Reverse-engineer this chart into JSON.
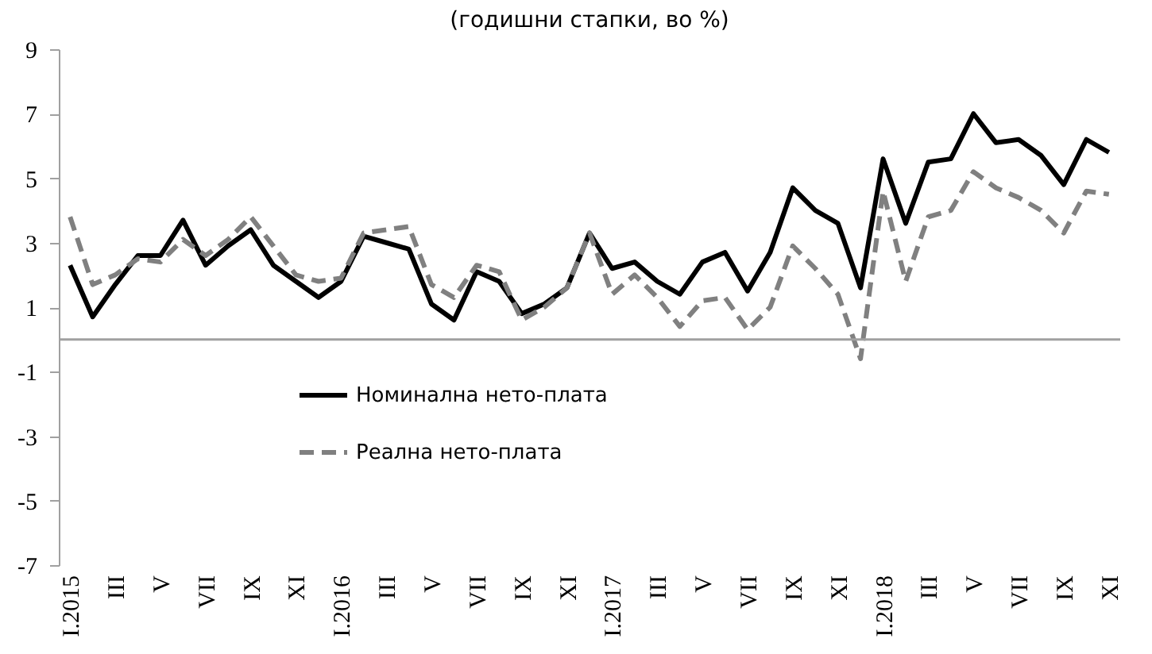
{
  "chart_data": {
    "type": "line",
    "title": "(годишни стапки, во %)",
    "categories": [
      "I.2015",
      null,
      "III",
      null,
      "V",
      null,
      "VII",
      null,
      "IX",
      null,
      "XI",
      null,
      "I.2016",
      null,
      "III",
      null,
      "V",
      null,
      "VII",
      null,
      "IX",
      null,
      "XI",
      null,
      "I.2017",
      null,
      "III",
      null,
      "V",
      null,
      "VII",
      null,
      "IX",
      null,
      "XI",
      null,
      "I.2018",
      null,
      "III",
      null,
      "V",
      null,
      "VII",
      null,
      "IX",
      null,
      "XI"
    ],
    "series": [
      {
        "name": "Номинална нето-плата",
        "color": "#000000",
        "line_style": "solid",
        "values": [
          2.3,
          0.7,
          1.7,
          2.6,
          2.6,
          3.7,
          2.3,
          2.9,
          3.4,
          2.3,
          1.8,
          1.3,
          1.8,
          3.2,
          3.0,
          2.8,
          1.1,
          0.6,
          2.1,
          1.8,
          0.8,
          1.1,
          1.6,
          3.3,
          2.2,
          2.4,
          1.8,
          1.4,
          2.4,
          2.7,
          1.5,
          2.7,
          4.7,
          4.0,
          3.6,
          1.6,
          5.6,
          3.6,
          5.5,
          5.6,
          7.0,
          6.1,
          6.2,
          5.7,
          4.8,
          6.2,
          5.8
        ]
      },
      {
        "name": "Реална нето-плата",
        "color": "#808080",
        "line_style": "dashed",
        "values": [
          3.8,
          1.7,
          2.0,
          2.5,
          2.4,
          3.1,
          2.6,
          3.1,
          3.8,
          2.9,
          2.0,
          1.8,
          1.9,
          3.3,
          3.4,
          3.5,
          1.7,
          1.3,
          2.3,
          2.1,
          0.6,
          1.0,
          1.6,
          3.3,
          1.4,
          2.0,
          1.3,
          0.4,
          1.2,
          1.3,
          0.3,
          1.0,
          2.9,
          2.2,
          1.4,
          -0.6,
          4.6,
          1.8,
          3.8,
          4.0,
          5.2,
          4.7,
          4.4,
          4.0,
          3.3,
          4.6,
          4.5
        ]
      }
    ],
    "ref_lines": [
      {
        "axis": "y",
        "value": 0,
        "color": "#a0a0a0"
      }
    ],
    "ylim": [
      -7,
      9
    ],
    "yticks": [
      -7,
      -5,
      -3,
      -1,
      1,
      3,
      5,
      7,
      9
    ],
    "grid": false,
    "legend": "bottom left"
  }
}
